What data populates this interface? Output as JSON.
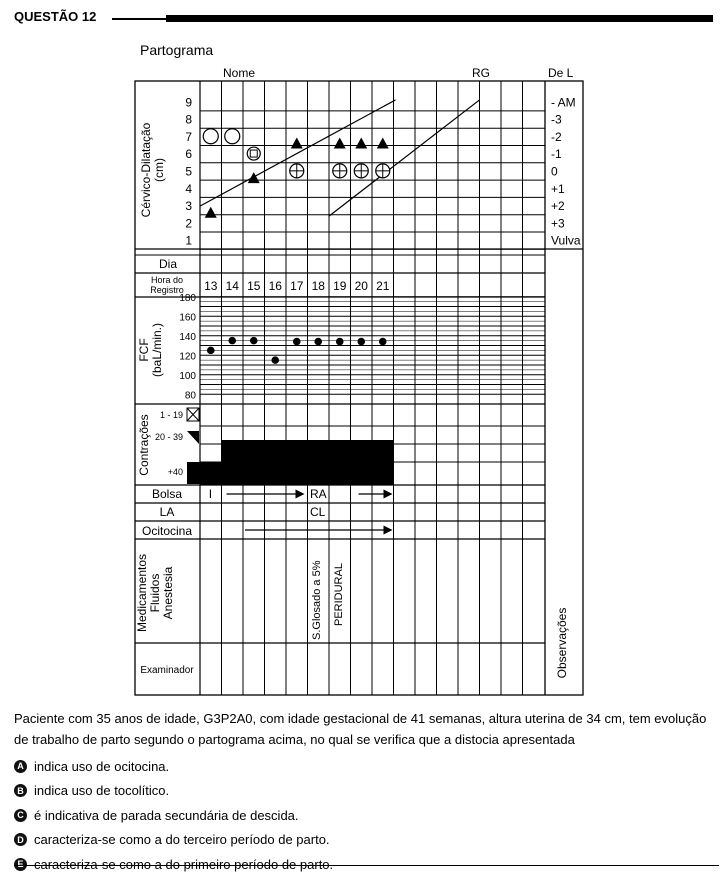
{
  "question": {
    "title": "QUESTÃO 12"
  },
  "form": {
    "title": "Partograma",
    "nome_label": "Nome",
    "rg_label": "RG",
    "del_label": "De L",
    "dilation_label": "Cérvico-Dilatação",
    "dilation_unit": "(cm)",
    "dilation_ticks": [
      "9",
      "8",
      "7",
      "6",
      "5",
      "4",
      "3",
      "2",
      "1"
    ],
    "station_ticks": [
      "- AM",
      "-3",
      "-2",
      "-1",
      "0",
      "+1",
      "+2",
      "+3",
      "Vulva"
    ],
    "dia_label": "Dia",
    "hora_label_1": "Hora do",
    "hora_label_2": "Registro",
    "hours": [
      "13",
      "14",
      "15",
      "16",
      "17",
      "18",
      "19",
      "20",
      "21"
    ],
    "fcf_label": "FCF",
    "fcf_unit": "(baL/min.)",
    "fcf_ticks": [
      "180",
      "160",
      "140",
      "120",
      "100",
      "80"
    ],
    "contracoes_label": "Contrações",
    "contracoes_ticks": [
      "1 - 19",
      "20 - 39",
      "+40"
    ],
    "bolsa_label": "Bolsa",
    "bolsa_intact": "I",
    "bolsa_ruptured": "RA",
    "la_label": "LA",
    "la_value": "CL",
    "ocitocina_label": "Ocitocina",
    "medicamentos_label": [
      "Medicamentos",
      "Fluidos",
      "Anestesia"
    ],
    "med_entries": [
      "S.Glosado a 5%",
      "PERIDURAL"
    ],
    "examinador_label": "Examinador",
    "observacoes_label": "Observações"
  },
  "chart_data": {
    "type": "partograph",
    "hours": [
      13,
      14,
      15,
      16,
      17,
      18,
      19,
      20,
      21
    ],
    "dilation_cm": [
      {
        "hour": 13,
        "value": 2.5
      },
      {
        "hour": 15,
        "value": 4.5
      },
      {
        "hour": 17,
        "value": 6.5
      },
      {
        "hour": 19,
        "value": 6.5
      },
      {
        "hour": 20,
        "value": 6.5
      },
      {
        "hour": 21,
        "value": 6.5
      }
    ],
    "fetal_heart_rate": [
      {
        "hour": 13,
        "value": 125
      },
      {
        "hour": 14,
        "value": 135
      },
      {
        "hour": 15,
        "value": 135
      },
      {
        "hour": 16,
        "value": 115
      },
      {
        "hour": 17,
        "value": 134
      },
      {
        "hour": 18,
        "value": 134
      },
      {
        "hour": 19,
        "value": 134
      },
      {
        "hour": 20,
        "value": 134
      },
      {
        "hour": 21,
        "value": 134
      }
    ],
    "presentation_circles": [
      {
        "hour": 13,
        "value": 7.5
      },
      {
        "hour": 14,
        "value": 7.5
      }
    ],
    "presentation_square_circle": [
      {
        "hour": 15,
        "value": 6.5
      }
    ],
    "presentation_station_symbols": [
      {
        "hour": 17,
        "value": 5.5
      },
      {
        "hour": 19,
        "value": 5.5
      },
      {
        "hour": 20,
        "value": 5.5
      },
      {
        "hour": 21,
        "value": 5.5
      }
    ],
    "contractions": [
      {
        "hour": 13,
        "level": "+40 partial"
      },
      {
        "hour": 14,
        "level": "+40"
      },
      {
        "hour": 15,
        "level": "+40"
      },
      {
        "hour": 16,
        "level": "+40"
      },
      {
        "hour": 17,
        "level": "+40"
      },
      {
        "hour": 18,
        "level": "+40"
      },
      {
        "hour": 19,
        "level": "+40"
      },
      {
        "hour": 20,
        "level": "+40"
      },
      {
        "hour": 21,
        "level": "+40"
      }
    ]
  },
  "stem": "Paciente com 35 anos de idade, G3P2A0, com idade gestacional de 41 semanas, altura uterina de 34 cm, tem evolução de trabalho de parto segundo o partograma acima, no qual se verifica que a distocia apresentada",
  "options": [
    {
      "letter": "A",
      "text": "indica uso de ocitocina."
    },
    {
      "letter": "B",
      "text": "indica uso de tocolítico."
    },
    {
      "letter": "C",
      "text": "é indicativa de parada secundária de descida."
    },
    {
      "letter": "D",
      "text": "caracteriza-se como a do terceiro período de parto."
    },
    {
      "letter": "E",
      "text": "caracteriza-se como a do primeiro período de parto."
    }
  ]
}
